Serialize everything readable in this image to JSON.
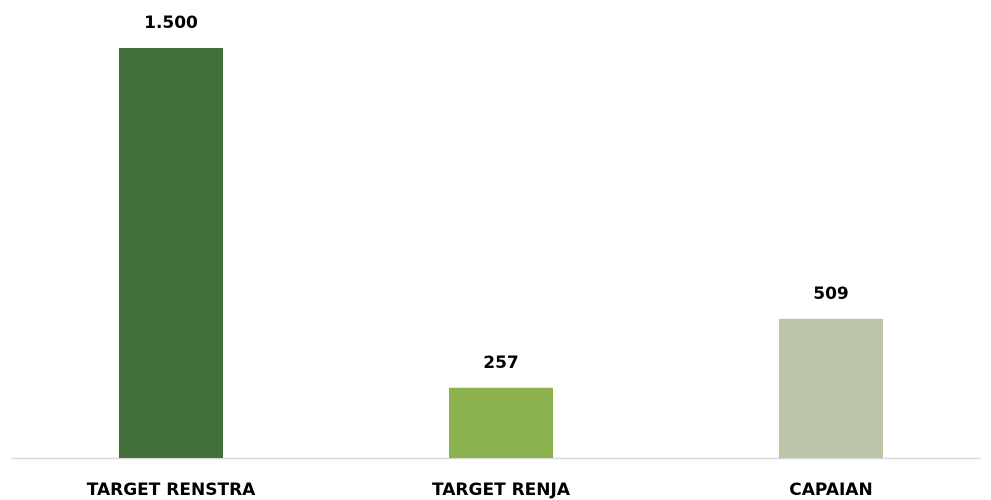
{
  "chart_data": {
    "type": "bar",
    "categories": [
      "TARGET RENSTRA",
      "TARGET RENJA",
      "CAPAIAN"
    ],
    "values": [
      1500,
      257,
      509
    ],
    "value_labels": [
      "1.500",
      "257",
      "509"
    ],
    "colors": [
      "#43703b",
      "#8bb24e",
      "#bcc5a7"
    ]
  }
}
